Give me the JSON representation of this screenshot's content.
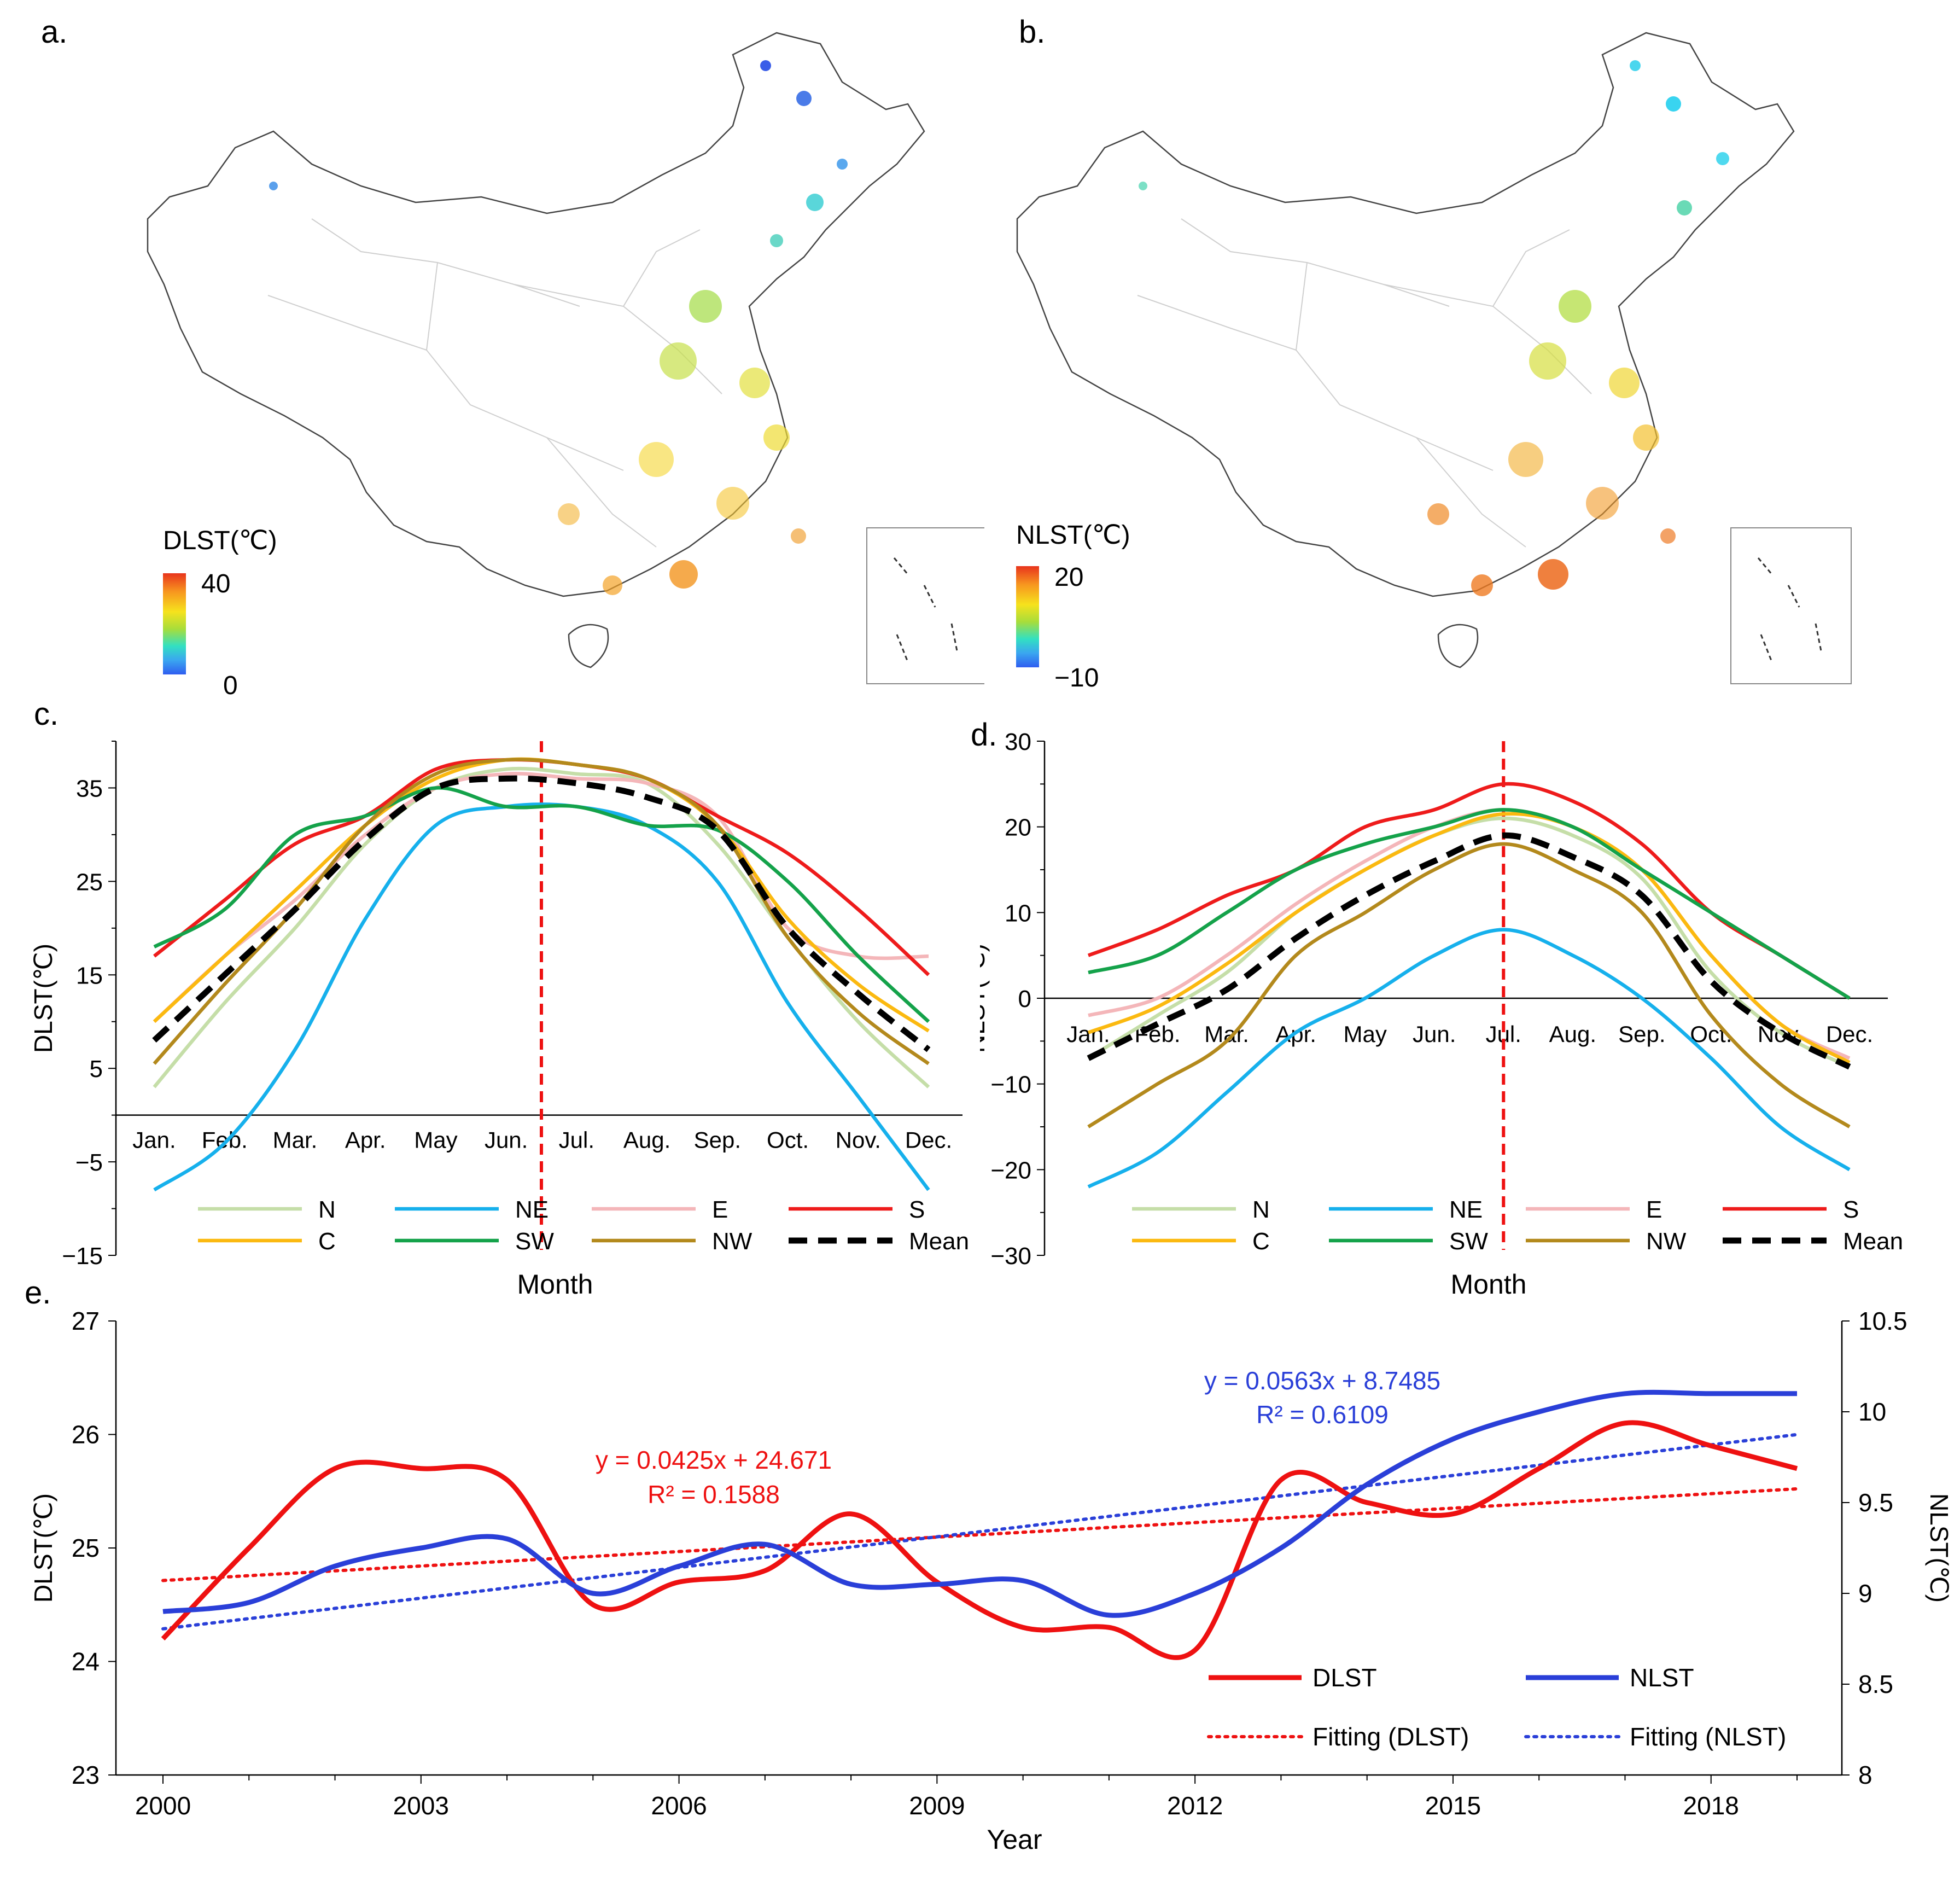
{
  "panels": {
    "a": {
      "letter": "a.",
      "colorbar_title": "DLST(℃)",
      "cb_max": "40",
      "cb_min": "0"
    },
    "b": {
      "letter": "b.",
      "colorbar_title": "NLST(℃)",
      "cb_max": "20",
      "cb_min": "−10"
    },
    "c": {
      "letter": "c."
    },
    "d": {
      "letter": "d."
    },
    "e": {
      "letter": "e."
    }
  },
  "colors": {
    "N": "#c5dea8",
    "NE": "#16b0ec",
    "E": "#f4b6b9",
    "S": "#ee1b1b",
    "C": "#fbb910",
    "SW": "#14a24a",
    "NW": "#b3891c",
    "Mean": "#000000",
    "DLST": "#ee1111",
    "NLST": "#2a3fd8",
    "vline": "#ee1111"
  },
  "chart_data": [
    {
      "type": "line",
      "id": "c",
      "title": "",
      "xlabel": "Month",
      "ylabel": "DLST(℃)",
      "ylim": [
        -15,
        40
      ],
      "yticks": [
        -15,
        -5,
        5,
        15,
        25,
        35
      ],
      "categories": [
        "Jan.",
        "Feb.",
        "Mar.",
        "Apr.",
        "May",
        "Jun.",
        "Jul.",
        "Aug.",
        "Sep.",
        "Oct.",
        "Nov.",
        "Dec."
      ],
      "vline_between": [
        "Jun.",
        "Jul."
      ],
      "legend": [
        "N",
        "NE",
        "E",
        "S",
        "C",
        "SW",
        "NW",
        "Mean"
      ],
      "series": [
        {
          "name": "N",
          "values": [
            3,
            12,
            20,
            29,
            35,
            37,
            36.5,
            35.5,
            29,
            19,
            10,
            3
          ]
        },
        {
          "name": "NE",
          "values": [
            -8,
            -3,
            7,
            21,
            31,
            33,
            33,
            31,
            25,
            12,
            2,
            -8
          ]
        },
        {
          "name": "E",
          "values": [
            10,
            17,
            23,
            30,
            35,
            36.5,
            36,
            35.5,
            32,
            20,
            17,
            17
          ]
        },
        {
          "name": "S",
          "values": [
            17,
            23,
            29,
            32,
            37,
            38,
            37.5,
            36,
            32,
            28,
            22,
            15
          ]
        },
        {
          "name": "C",
          "values": [
            10,
            17,
            24,
            31,
            36,
            38,
            37.5,
            36,
            31,
            21,
            14,
            9
          ]
        },
        {
          "name": "SW",
          "values": [
            18,
            22,
            30,
            32,
            35,
            33,
            33,
            31,
            30.5,
            25,
            17,
            10
          ]
        },
        {
          "name": "NW",
          "values": [
            5.5,
            14,
            22,
            31,
            36.5,
            38,
            37.5,
            36,
            31,
            19,
            11,
            5.5
          ]
        },
        {
          "name": "Mean",
          "values": [
            8,
            15,
            22,
            29.5,
            35,
            36,
            35.5,
            34,
            30.5,
            20,
            13,
            7
          ]
        }
      ]
    },
    {
      "type": "line",
      "id": "d",
      "title": "",
      "xlabel": "Month",
      "ylabel": "NLST(℃)",
      "ylim": [
        -30,
        30
      ],
      "yticks": [
        -30,
        -20,
        -10,
        0,
        10,
        20,
        30
      ],
      "categories": [
        "Jan.",
        "Feb.",
        "Mar.",
        "Apr.",
        "May",
        "Jun.",
        "Jul.",
        "Aug.",
        "Sep.",
        "Oct.",
        "Nov.",
        "Dec."
      ],
      "vline_at": "Jul.",
      "legend": [
        "N",
        "NE",
        "E",
        "S",
        "C",
        "SW",
        "NW",
        "Mean"
      ],
      "series": [
        {
          "name": "N",
          "values": [
            -7,
            -2,
            3,
            10,
            15,
            19,
            21,
            19,
            14,
            3,
            -4,
            -8
          ]
        },
        {
          "name": "NE",
          "values": [
            -22,
            -18,
            -11,
            -4,
            0,
            5,
            8,
            5,
            0,
            -7,
            -15,
            -20
          ]
        },
        {
          "name": "E",
          "values": [
            -2,
            0,
            5,
            11,
            16,
            20,
            22,
            20,
            15,
            5,
            -3,
            -7
          ]
        },
        {
          "name": "S",
          "values": [
            5,
            8,
            12,
            15,
            20,
            22,
            25,
            23,
            18,
            10,
            5,
            0
          ]
        },
        {
          "name": "C",
          "values": [
            -4,
            -1,
            4,
            10,
            15,
            19,
            21.5,
            20,
            15,
            5,
            -3,
            -7.5
          ]
        },
        {
          "name": "SW",
          "values": [
            3,
            5,
            10,
            15,
            18,
            20,
            22,
            20,
            15,
            10,
            5,
            0
          ]
        },
        {
          "name": "NW",
          "values": [
            -15,
            -10,
            -5,
            5,
            10,
            15,
            18,
            15,
            10,
            -2,
            -10,
            -15
          ]
        },
        {
          "name": "Mean",
          "values": [
            -7,
            -3,
            1,
            7,
            12,
            16,
            19,
            16.5,
            12,
            2,
            -4,
            -8
          ]
        }
      ]
    },
    {
      "type": "line",
      "id": "e",
      "title": "",
      "xlabel": "Year",
      "ylabel_left": "DLST(℃)",
      "ylabel_right": "NLST(℃)",
      "ylim_left": [
        23,
        27
      ],
      "ylim_right": [
        8,
        10.5
      ],
      "yticks_left": [
        23,
        24,
        25,
        26,
        27
      ],
      "yticks_right": [
        8,
        8.5,
        9,
        9.5,
        10,
        10.5
      ],
      "x": [
        2000,
        2001,
        2002,
        2003,
        2004,
        2005,
        2006,
        2007,
        2008,
        2009,
        2010,
        2011,
        2012,
        2013,
        2014,
        2015,
        2016,
        2017,
        2018,
        2019
      ],
      "xticks": [
        2000,
        2003,
        2006,
        2009,
        2012,
        2015,
        2018
      ],
      "series": [
        {
          "name": "DLST",
          "axis": "left",
          "values": [
            24.2,
            25.0,
            25.7,
            25.7,
            25.6,
            24.5,
            24.7,
            24.8,
            25.3,
            24.7,
            24.3,
            24.3,
            24.1,
            25.6,
            25.4,
            25.3,
            25.7,
            26.1,
            25.9,
            25.7
          ]
        },
        {
          "name": "NLST",
          "axis": "right",
          "values": [
            8.9,
            8.95,
            9.15,
            9.25,
            9.3,
            9.0,
            9.15,
            9.27,
            9.05,
            9.05,
            9.07,
            8.88,
            9.0,
            9.25,
            9.6,
            9.85,
            10.0,
            10.1,
            10.1,
            10.1
          ]
        }
      ],
      "fits": [
        {
          "name": "Fitting (DLST)",
          "axis": "left",
          "slope": 0.0425,
          "intercept": 24.671,
          "equation": "y = 0.0425x + 24.671",
          "r2": "R² = 0.1588"
        },
        {
          "name": "Fitting (NLST)",
          "axis": "right",
          "slope": 0.0563,
          "intercept": 8.7485,
          "equation": "y = 0.0563x + 8.7485",
          "r2": "R² = 0.6109"
        }
      ],
      "legend": [
        "DLST",
        "NLST",
        "Fitting (DLST)",
        "Fitting (NLST)"
      ]
    }
  ]
}
